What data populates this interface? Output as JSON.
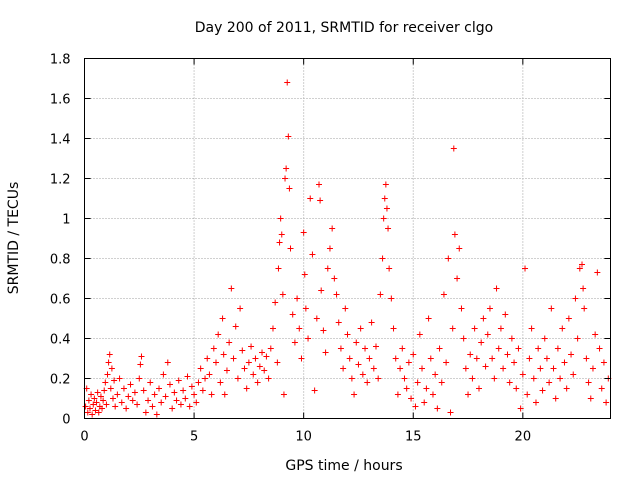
{
  "chart_data": {
    "type": "scatter",
    "title": "Day 200 of 2011, SRMTID for receiver clgo",
    "xlabel": "GPS time / hours",
    "ylabel": "SRMTID / TECUs",
    "xlim": [
      0,
      24
    ],
    "ylim": [
      0,
      1.8
    ],
    "xticks": [
      0,
      5,
      10,
      15,
      20
    ],
    "xtick_labels": [
      "0",
      "5",
      "10",
      "15",
      "20"
    ],
    "yticks": [
      0,
      0.2,
      0.4,
      0.6,
      0.8,
      1,
      1.2,
      1.4,
      1.6,
      1.8
    ],
    "ytick_labels": [
      "0",
      "0.2",
      "0.4",
      "0.6",
      "0.8",
      "1",
      "1.2",
      "1.4",
      "1.6",
      "1.8"
    ],
    "grid": true,
    "marker": "plus",
    "color": "#ff0000",
    "series": [
      {
        "name": "SRMTID",
        "points": [
          [
            0.05,
            0.06
          ],
          [
            0.1,
            0.15
          ],
          [
            0.15,
            0.03
          ],
          [
            0.2,
            0.09
          ],
          [
            0.25,
            0.05
          ],
          [
            0.3,
            0.12
          ],
          [
            0.35,
            0.02
          ],
          [
            0.4,
            0.07
          ],
          [
            0.45,
            0.1
          ],
          [
            0.5,
            0.04
          ],
          [
            0.55,
            0.08
          ],
          [
            0.6,
            0.13
          ],
          [
            0.65,
            0.03
          ],
          [
            0.7,
            0.06
          ],
          [
            0.75,
            0.11
          ],
          [
            0.8,
            0.05
          ],
          [
            0.85,
            0.09
          ],
          [
            0.9,
            0.14
          ],
          [
            0.95,
            0.18
          ],
          [
            1.0,
            0.07
          ],
          [
            1.05,
            0.22
          ],
          [
            1.1,
            0.28
          ],
          [
            1.15,
            0.32
          ],
          [
            1.2,
            0.15
          ],
          [
            1.25,
            0.25
          ],
          [
            1.3,
            0.1
          ],
          [
            1.35,
            0.19
          ],
          [
            1.4,
            0.06
          ],
          [
            1.5,
            0.12
          ],
          [
            1.6,
            0.2
          ],
          [
            1.7,
            0.08
          ],
          [
            1.8,
            0.15
          ],
          [
            1.9,
            0.05
          ],
          [
            2.0,
            0.11
          ],
          [
            2.1,
            0.17
          ],
          [
            2.2,
            0.09
          ],
          [
            2.3,
            0.13
          ],
          [
            2.4,
            0.07
          ],
          [
            2.5,
            0.2
          ],
          [
            2.55,
            0.27
          ],
          [
            2.6,
            0.31
          ],
          [
            2.7,
            0.14
          ],
          [
            2.8,
            0.03
          ],
          [
            2.9,
            0.09
          ],
          [
            3.0,
            0.18
          ],
          [
            3.1,
            0.06
          ],
          [
            3.2,
            0.12
          ],
          [
            3.3,
            0.02
          ],
          [
            3.4,
            0.15
          ],
          [
            3.5,
            0.08
          ],
          [
            3.6,
            0.22
          ],
          [
            3.7,
            0.11
          ],
          [
            3.8,
            0.28
          ],
          [
            3.9,
            0.17
          ],
          [
            4.0,
            0.05
          ],
          [
            4.1,
            0.13
          ],
          [
            4.2,
            0.09
          ],
          [
            4.3,
            0.19
          ],
          [
            4.4,
            0.07
          ],
          [
            4.5,
            0.14
          ],
          [
            4.6,
            0.1
          ],
          [
            4.7,
            0.21
          ],
          [
            4.8,
            0.06
          ],
          [
            4.9,
            0.16
          ],
          [
            5.0,
            0.12
          ],
          [
            5.1,
            0.08
          ],
          [
            5.2,
            0.18
          ],
          [
            5.3,
            0.25
          ],
          [
            5.4,
            0.14
          ],
          [
            5.5,
            0.2
          ],
          [
            5.6,
            0.3
          ],
          [
            5.7,
            0.22
          ],
          [
            5.8,
            0.12
          ],
          [
            5.9,
            0.35
          ],
          [
            6.0,
            0.28
          ],
          [
            6.1,
            0.42
          ],
          [
            6.2,
            0.18
          ],
          [
            6.3,
            0.5
          ],
          [
            6.35,
            0.32
          ],
          [
            6.4,
            0.12
          ],
          [
            6.5,
            0.24
          ],
          [
            6.6,
            0.38
          ],
          [
            6.7,
            0.65
          ],
          [
            6.8,
            0.3
          ],
          [
            6.9,
            0.46
          ],
          [
            7.0,
            0.2
          ],
          [
            7.1,
            0.55
          ],
          [
            7.2,
            0.34
          ],
          [
            7.3,
            0.25
          ],
          [
            7.4,
            0.15
          ],
          [
            7.5,
            0.28
          ],
          [
            7.6,
            0.36
          ],
          [
            7.7,
            0.22
          ],
          [
            7.8,
            0.3
          ],
          [
            7.9,
            0.18
          ],
          [
            8.0,
            0.26
          ],
          [
            8.1,
            0.33
          ],
          [
            8.2,
            0.24
          ],
          [
            8.3,
            0.31
          ],
          [
            8.4,
            0.2
          ],
          [
            8.5,
            0.35
          ],
          [
            8.6,
            0.45
          ],
          [
            8.7,
            0.58
          ],
          [
            8.8,
            0.28
          ],
          [
            8.85,
            0.75
          ],
          [
            8.9,
            0.88
          ],
          [
            8.95,
            1.0
          ],
          [
            9.0,
            0.92
          ],
          [
            9.05,
            0.62
          ],
          [
            9.1,
            0.12
          ],
          [
            9.15,
            1.2
          ],
          [
            9.2,
            1.25
          ],
          [
            9.25,
            1.68
          ],
          [
            9.3,
            1.41
          ],
          [
            9.35,
            1.15
          ],
          [
            9.4,
            0.85
          ],
          [
            9.5,
            0.52
          ],
          [
            9.6,
            0.38
          ],
          [
            9.7,
            0.6
          ],
          [
            9.8,
            0.45
          ],
          [
            9.9,
            0.3
          ],
          [
            10.0,
            0.93
          ],
          [
            10.05,
            0.72
          ],
          [
            10.1,
            0.55
          ],
          [
            10.2,
            0.4
          ],
          [
            10.3,
            1.1
          ],
          [
            10.4,
            0.82
          ],
          [
            10.5,
            0.14
          ],
          [
            10.6,
            0.5
          ],
          [
            10.7,
            1.17
          ],
          [
            10.75,
            1.09
          ],
          [
            10.8,
            0.64
          ],
          [
            10.9,
            0.44
          ],
          [
            11.0,
            0.33
          ],
          [
            11.1,
            0.75
          ],
          [
            11.2,
            0.85
          ],
          [
            11.3,
            0.95
          ],
          [
            11.4,
            0.7
          ],
          [
            11.5,
            0.62
          ],
          [
            11.6,
            0.48
          ],
          [
            11.7,
            0.35
          ],
          [
            11.8,
            0.25
          ],
          [
            11.9,
            0.55
          ],
          [
            12.0,
            0.42
          ],
          [
            12.1,
            0.3
          ],
          [
            12.2,
            0.2
          ],
          [
            12.3,
            0.12
          ],
          [
            12.4,
            0.38
          ],
          [
            12.5,
            0.27
          ],
          [
            12.6,
            0.45
          ],
          [
            12.7,
            0.22
          ],
          [
            12.8,
            0.35
          ],
          [
            12.9,
            0.18
          ],
          [
            13.0,
            0.3
          ],
          [
            13.1,
            0.48
          ],
          [
            13.2,
            0.25
          ],
          [
            13.3,
            0.36
          ],
          [
            13.4,
            0.2
          ],
          [
            13.5,
            0.62
          ],
          [
            13.6,
            0.8
          ],
          [
            13.65,
            1.0
          ],
          [
            13.7,
            1.1
          ],
          [
            13.75,
            1.17
          ],
          [
            13.8,
            1.05
          ],
          [
            13.85,
            0.95
          ],
          [
            13.9,
            0.75
          ],
          [
            14.0,
            0.6
          ],
          [
            14.1,
            0.45
          ],
          [
            14.2,
            0.3
          ],
          [
            14.3,
            0.12
          ],
          [
            14.4,
            0.25
          ],
          [
            14.5,
            0.35
          ],
          [
            14.6,
            0.2
          ],
          [
            14.7,
            0.15
          ],
          [
            14.8,
            0.28
          ],
          [
            14.9,
            0.1
          ],
          [
            15.0,
            0.32
          ],
          [
            15.1,
            0.06
          ],
          [
            15.2,
            0.18
          ],
          [
            15.3,
            0.42
          ],
          [
            15.4,
            0.25
          ],
          [
            15.5,
            0.08
          ],
          [
            15.6,
            0.15
          ],
          [
            15.7,
            0.5
          ],
          [
            15.8,
            0.3
          ],
          [
            15.9,
            0.12
          ],
          [
            16.0,
            0.22
          ],
          [
            16.1,
            0.05
          ],
          [
            16.2,
            0.35
          ],
          [
            16.3,
            0.18
          ],
          [
            16.4,
            0.62
          ],
          [
            16.5,
            0.28
          ],
          [
            16.6,
            0.8
          ],
          [
            16.7,
            0.03
          ],
          [
            16.8,
            0.45
          ],
          [
            16.85,
            1.35
          ],
          [
            16.9,
            0.92
          ],
          [
            17.0,
            0.7
          ],
          [
            17.1,
            0.85
          ],
          [
            17.2,
            0.55
          ],
          [
            17.3,
            0.4
          ],
          [
            17.4,
            0.25
          ],
          [
            17.5,
            0.12
          ],
          [
            17.6,
            0.32
          ],
          [
            17.7,
            0.2
          ],
          [
            17.8,
            0.45
          ],
          [
            17.9,
            0.3
          ],
          [
            18.0,
            0.15
          ],
          [
            18.1,
            0.38
          ],
          [
            18.2,
            0.5
          ],
          [
            18.3,
            0.26
          ],
          [
            18.4,
            0.42
          ],
          [
            18.5,
            0.55
          ],
          [
            18.6,
            0.3
          ],
          [
            18.7,
            0.2
          ],
          [
            18.8,
            0.65
          ],
          [
            18.9,
            0.35
          ],
          [
            19.0,
            0.45
          ],
          [
            19.1,
            0.25
          ],
          [
            19.2,
            0.52
          ],
          [
            19.3,
            0.32
          ],
          [
            19.4,
            0.18
          ],
          [
            19.5,
            0.4
          ],
          [
            19.6,
            0.28
          ],
          [
            19.7,
            0.15
          ],
          [
            19.8,
            0.35
          ],
          [
            19.9,
            0.05
          ],
          [
            20.0,
            0.22
          ],
          [
            20.1,
            0.75
          ],
          [
            20.2,
            0.12
          ],
          [
            20.3,
            0.3
          ],
          [
            20.4,
            0.45
          ],
          [
            20.5,
            0.2
          ],
          [
            20.6,
            0.08
          ],
          [
            20.7,
            0.35
          ],
          [
            20.8,
            0.25
          ],
          [
            20.9,
            0.14
          ],
          [
            21.0,
            0.4
          ],
          [
            21.1,
            0.3
          ],
          [
            21.2,
            0.18
          ],
          [
            21.3,
            0.55
          ],
          [
            21.4,
            0.25
          ],
          [
            21.5,
            0.1
          ],
          [
            21.6,
            0.35
          ],
          [
            21.7,
            0.2
          ],
          [
            21.8,
            0.45
          ],
          [
            21.9,
            0.28
          ],
          [
            22.0,
            0.15
          ],
          [
            22.1,
            0.5
          ],
          [
            22.2,
            0.32
          ],
          [
            22.3,
            0.22
          ],
          [
            22.4,
            0.6
          ],
          [
            22.5,
            0.4
          ],
          [
            22.6,
            0.75
          ],
          [
            22.7,
            0.77
          ],
          [
            22.75,
            0.65
          ],
          [
            22.8,
            0.55
          ],
          [
            22.9,
            0.3
          ],
          [
            23.0,
            0.18
          ],
          [
            23.1,
            0.1
          ],
          [
            23.2,
            0.25
          ],
          [
            23.3,
            0.42
          ],
          [
            23.4,
            0.73
          ],
          [
            23.5,
            0.35
          ],
          [
            23.6,
            0.15
          ],
          [
            23.7,
            0.28
          ],
          [
            23.8,
            0.08
          ],
          [
            23.9,
            0.2
          ]
        ]
      }
    ]
  }
}
